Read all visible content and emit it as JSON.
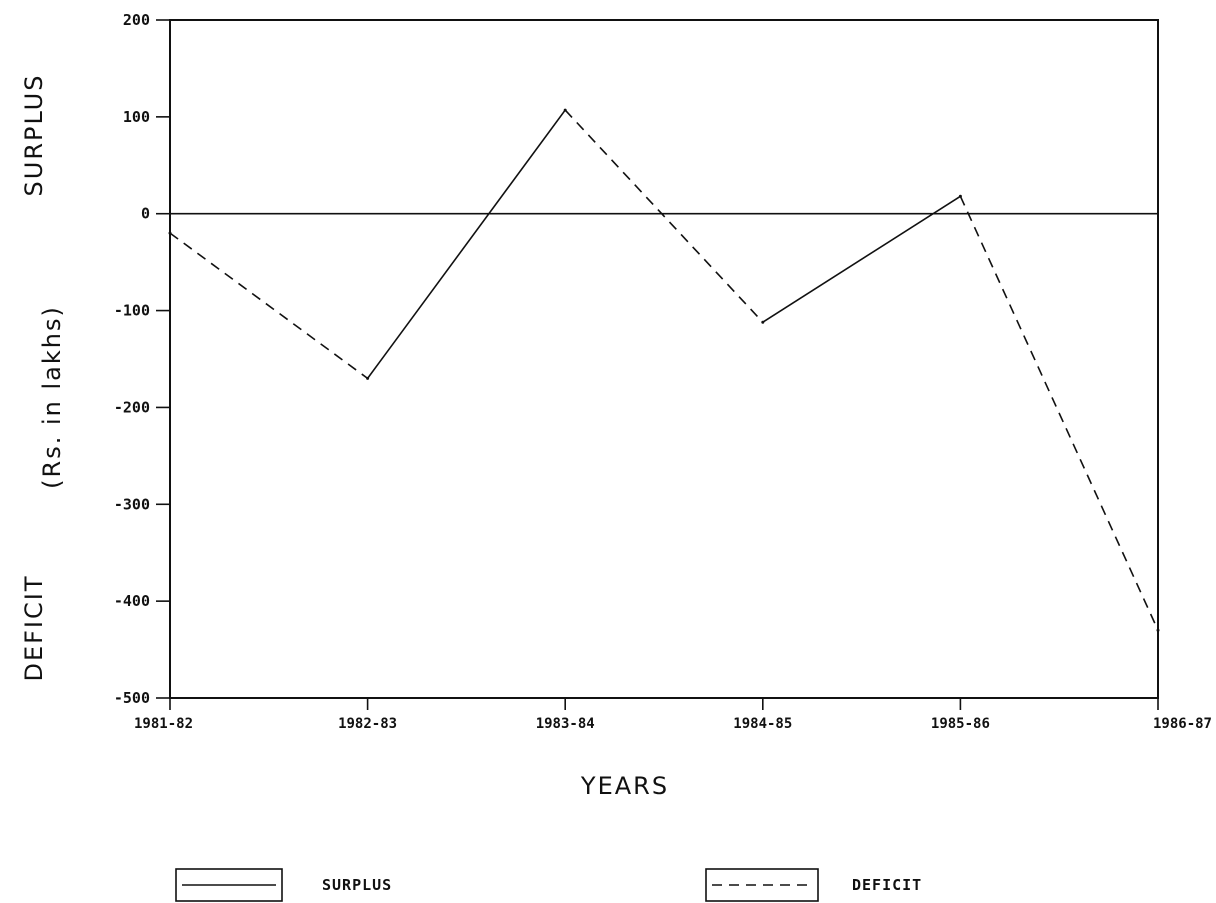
{
  "chart_data": {
    "type": "line",
    "categories": [
      "1981-82",
      "1982-83",
      "1983-84",
      "1984-85",
      "1985-86",
      "1986-87"
    ],
    "values": [
      -20,
      -170,
      107,
      -112,
      18,
      -430
    ],
    "segment_styles": [
      "dashed",
      "solid",
      "dashed",
      "solid",
      "dashed"
    ],
    "ylim": [
      -500,
      200
    ],
    "yticks": [
      200,
      100,
      0,
      -100,
      -200,
      -300,
      -400,
      -500
    ],
    "ytick_labels": [
      "200",
      "100",
      "0",
      "-100",
      "-200",
      "-300",
      "-400",
      "-500"
    ],
    "xlabel": "YEARS",
    "ylabel_top": "SURPLUS",
    "ylabel_middle": "(Rs. in lakhs)",
    "ylabel_bottom": "DEFICIT",
    "zero_line": true,
    "grid": false,
    "legend": {
      "placement": "bottom",
      "items": [
        {
          "label": "SURPLUS",
          "style": "solid"
        },
        {
          "label": "DEFICIT",
          "style": "dashed"
        }
      ]
    },
    "line_color": "#111111"
  }
}
